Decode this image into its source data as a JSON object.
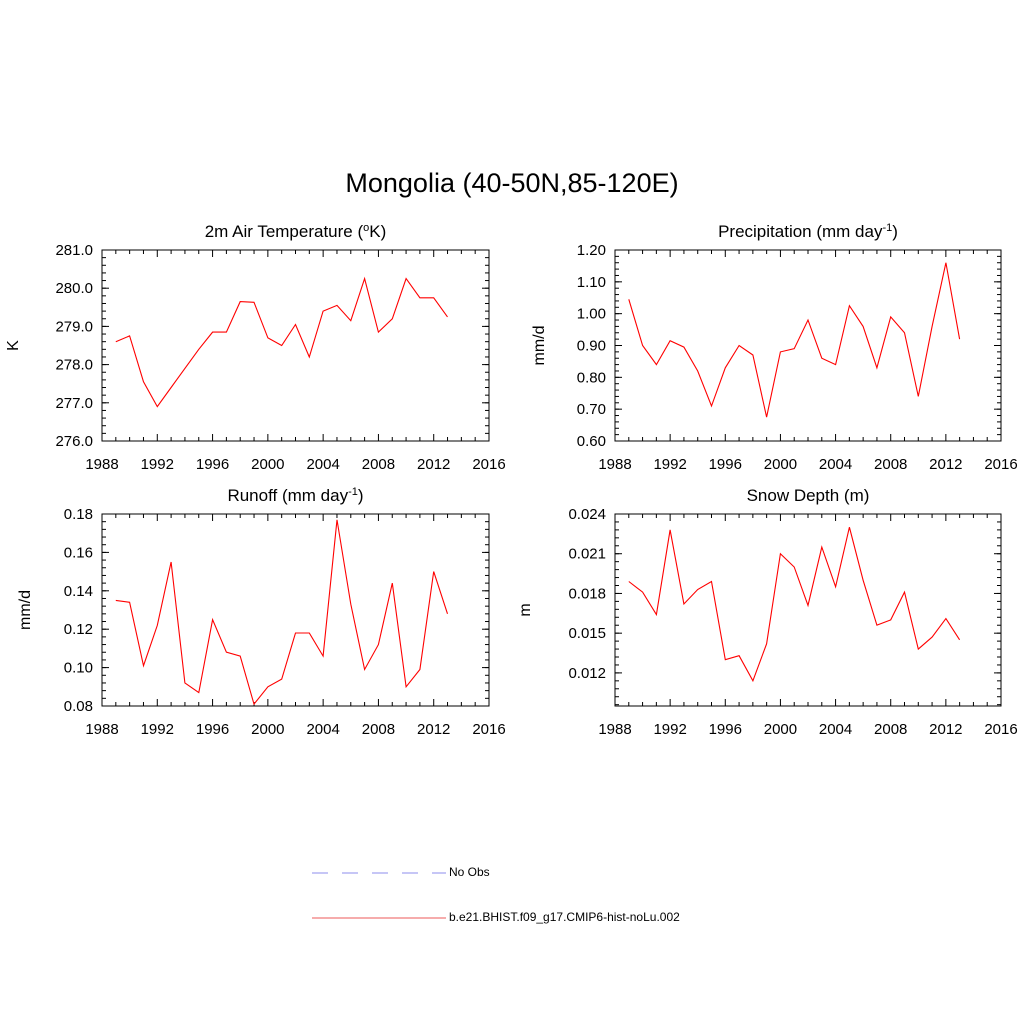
{
  "figure": {
    "title": "Mongolia (40-50N,85-120E)"
  },
  "legend": [
    {
      "label": "No Obs",
      "color": "#a3a3f0",
      "style": "dashed"
    },
    {
      "label": "b.e21.BHIST.f09_g17.CMIP6-hist-noLu.002",
      "color": "#f07a7a",
      "style": "solid"
    }
  ],
  "chart_data": [
    {
      "type": "line",
      "title": "2m Air Temperature (",
      "title_sup": "o",
      "title_after": "K)",
      "title_sup_after": "",
      "title_tail": "",
      "ylabel": "K",
      "xlim": [
        1988,
        2016
      ],
      "ylim": [
        276.0,
        281.0
      ],
      "xticks": [
        "1988",
        "1992",
        "1996",
        "2000",
        "2004",
        "2008",
        "2012",
        "2016"
      ],
      "xtick_values": [
        1988,
        1992,
        1996,
        2000,
        2004,
        2008,
        2012,
        2016
      ],
      "yticks": [
        "276.0",
        "277.0",
        "278.0",
        "279.0",
        "280.0",
        "281.0"
      ],
      "ytick_values": [
        276.0,
        277.0,
        278.0,
        279.0,
        280.0,
        281.0
      ],
      "y_minor_step": 0.2,
      "x": [
        1989,
        1990,
        1991,
        1992,
        1993,
        1994,
        1995,
        1996,
        1997,
        1998,
        1999,
        2000,
        2001,
        2002,
        2003,
        2004,
        2005,
        2006,
        2007,
        2008,
        2009,
        2010,
        2011,
        2012,
        2013
      ],
      "series": [
        {
          "color": "#ff0000",
          "values": [
            278.6,
            278.75,
            277.55,
            276.9,
            277.4,
            277.9,
            278.4,
            278.85,
            278.85,
            279.65,
            279.63,
            278.7,
            278.5,
            279.05,
            278.2,
            279.4,
            279.55,
            279.15,
            280.25,
            278.85,
            279.2,
            280.25,
            279.75,
            279.75,
            279.25
          ]
        }
      ]
    },
    {
      "type": "line",
      "title": "Precipitation (mm day",
      "title_sup": "",
      "title_after": "",
      "title_sup_after": "-1",
      "title_tail": ")",
      "ylabel": "mm/d",
      "xlim": [
        1988,
        2016
      ],
      "ylim": [
        0.6,
        1.2
      ],
      "xticks": [
        "1988",
        "1992",
        "1996",
        "2000",
        "2004",
        "2008",
        "2012",
        "2016"
      ],
      "xtick_values": [
        1988,
        1992,
        1996,
        2000,
        2004,
        2008,
        2012,
        2016
      ],
      "yticks": [
        "0.60",
        "0.70",
        "0.80",
        "0.90",
        "1.00",
        "1.10",
        "1.20"
      ],
      "ytick_values": [
        0.6,
        0.7,
        0.8,
        0.9,
        1.0,
        1.1,
        1.2
      ],
      "y_minor_step": 0.02,
      "x": [
        1989,
        1990,
        1991,
        1992,
        1993,
        1994,
        1995,
        1996,
        1997,
        1998,
        1999,
        2000,
        2001,
        2002,
        2003,
        2004,
        2005,
        2006,
        2007,
        2008,
        2009,
        2010,
        2011,
        2012,
        2013
      ],
      "series": [
        {
          "color": "#ff0000",
          "values": [
            1.045,
            0.9,
            0.84,
            0.915,
            0.895,
            0.82,
            0.71,
            0.83,
            0.9,
            0.87,
            0.675,
            0.88,
            0.89,
            0.98,
            0.86,
            0.84,
            1.025,
            0.96,
            0.83,
            0.99,
            0.94,
            0.74,
            0.96,
            1.16,
            0.92
          ]
        }
      ]
    },
    {
      "type": "line",
      "title": "Runoff (mm day",
      "title_sup": "",
      "title_after": "",
      "title_sup_after": "-1",
      "title_tail": ")",
      "ylabel": "mm/d",
      "xlim": [
        1988,
        2016
      ],
      "ylim": [
        0.08,
        0.18
      ],
      "xticks": [
        "1988",
        "1992",
        "1996",
        "2000",
        "2004",
        "2008",
        "2012",
        "2016"
      ],
      "xtick_values": [
        1988,
        1992,
        1996,
        2000,
        2004,
        2008,
        2012,
        2016
      ],
      "yticks": [
        "0.08",
        "0.10",
        "0.12",
        "0.14",
        "0.16",
        "0.18"
      ],
      "ytick_values": [
        0.08,
        0.1,
        0.12,
        0.14,
        0.16,
        0.18
      ],
      "y_minor_step": 0.004,
      "x": [
        1989,
        1990,
        1991,
        1992,
        1993,
        1994,
        1995,
        1996,
        1997,
        1998,
        1999,
        2000,
        2001,
        2002,
        2003,
        2004,
        2005,
        2006,
        2007,
        2008,
        2009,
        2010,
        2011,
        2012,
        2013
      ],
      "series": [
        {
          "color": "#ff0000",
          "values": [
            0.135,
            0.134,
            0.101,
            0.122,
            0.155,
            0.092,
            0.087,
            0.125,
            0.108,
            0.106,
            0.081,
            0.09,
            0.094,
            0.118,
            0.118,
            0.106,
            0.177,
            0.133,
            0.099,
            0.112,
            0.144,
            0.09,
            0.099,
            0.15,
            0.128
          ]
        }
      ]
    },
    {
      "type": "line",
      "title": "Snow Depth (m)",
      "title_sup": "",
      "title_after": "",
      "title_sup_after": "",
      "title_tail": "",
      "ylabel": "m",
      "xlim": [
        1988,
        2016
      ],
      "ylim": [
        0.0095,
        0.024
      ],
      "xticks": [
        "1988",
        "1992",
        "1996",
        "2000",
        "2004",
        "2008",
        "2012",
        "2016"
      ],
      "xtick_values": [
        1988,
        1992,
        1996,
        2000,
        2004,
        2008,
        2012,
        2016
      ],
      "yticks": [
        "0.012",
        "0.015",
        "0.018",
        "0.021",
        "0.024"
      ],
      "ytick_values": [
        0.012,
        0.015,
        0.018,
        0.021,
        0.024
      ],
      "y_minor_step": 0.0006,
      "x": [
        1989,
        1990,
        1991,
        1992,
        1993,
        1994,
        1995,
        1996,
        1997,
        1998,
        1999,
        2000,
        2001,
        2002,
        2003,
        2004,
        2005,
        2006,
        2007,
        2008,
        2009,
        2010,
        2011,
        2012,
        2013
      ],
      "series": [
        {
          "color": "#ff0000",
          "values": [
            0.0189,
            0.0181,
            0.0164,
            0.0228,
            0.0172,
            0.0183,
            0.0189,
            0.013,
            0.0133,
            0.0114,
            0.0142,
            0.021,
            0.02,
            0.0171,
            0.0215,
            0.0185,
            0.023,
            0.019,
            0.0156,
            0.016,
            0.0181,
            0.0138,
            0.0147,
            0.0161,
            0.0145
          ]
        }
      ]
    }
  ]
}
